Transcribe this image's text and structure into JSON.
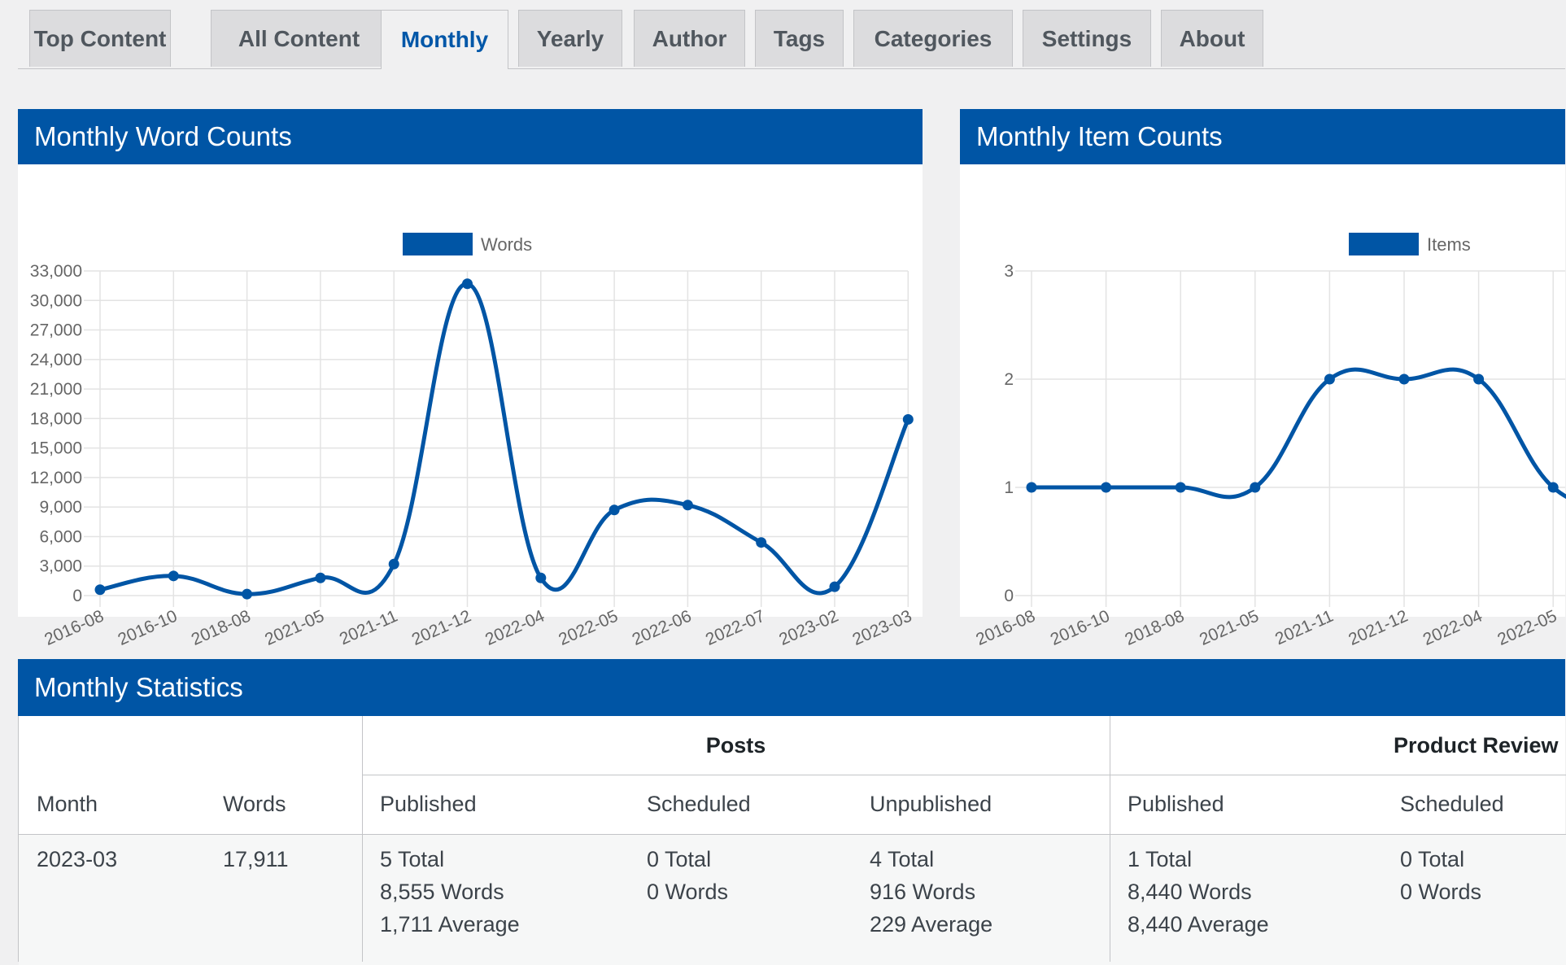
{
  "tabs": [
    {
      "label": "Top Content"
    },
    {
      "label": "All Content"
    },
    {
      "label": "Monthly"
    },
    {
      "label": "Yearly"
    },
    {
      "label": "Author"
    },
    {
      "label": "Tags"
    },
    {
      "label": "Categories"
    },
    {
      "label": "Settings"
    },
    {
      "label": "About"
    }
  ],
  "active_tab": "Monthly",
  "colors": {
    "accent": "#0055a5",
    "line": "#0055a5"
  },
  "word_chart": {
    "title": "Monthly Word Counts"
  },
  "item_chart": {
    "title": "Monthly Item Counts"
  },
  "chart_data": [
    {
      "type": "line",
      "title": "Monthly Word Counts",
      "legend": "Words",
      "legend_position": "top",
      "x": [
        "2016-08",
        "2016-10",
        "2018-08",
        "2021-05",
        "2021-11",
        "2021-12",
        "2022-04",
        "2022-05",
        "2022-06",
        "2022-07",
        "2023-02",
        "2023-03"
      ],
      "series": [
        {
          "name": "Words",
          "values": [
            600,
            2000,
            150,
            1800,
            3200,
            31700,
            1800,
            8700,
            9200,
            5400,
            900,
            17911
          ]
        }
      ],
      "y_ticks": [
        "0",
        "3,000",
        "6,000",
        "9,000",
        "12,000",
        "15,000",
        "18,000",
        "21,000",
        "24,000",
        "27,000",
        "30,000",
        "33,000"
      ],
      "ylim": [
        0,
        33000
      ],
      "grid": true
    },
    {
      "type": "line",
      "title": "Monthly Item Counts",
      "legend": "Items",
      "legend_position": "top",
      "x": [
        "2016-08",
        "2016-10",
        "2018-08",
        "2021-05",
        "2021-11",
        "2021-12",
        "2022-04",
        "2022-05"
      ],
      "series": [
        {
          "name": "Items",
          "values": [
            1,
            1,
            1,
            1,
            2,
            2,
            2,
            1
          ]
        }
      ],
      "y_ticks": [
        "0",
        "1",
        "2",
        "3"
      ],
      "ylim": [
        0,
        3
      ],
      "grid": true
    }
  ],
  "stats": {
    "title": "Monthly Statistics",
    "groups": {
      "posts": "Posts",
      "reviews": "Product Review"
    },
    "columns": {
      "month": "Month",
      "words": "Words",
      "posts_published": "Published",
      "posts_scheduled": "Scheduled",
      "posts_unpublished": "Unpublished",
      "reviews_published": "Published",
      "reviews_scheduled": "Scheduled"
    },
    "row": {
      "month": "2023-03",
      "words": "17,911",
      "posts_published": [
        "5 Total",
        "8,555 Words",
        "1,711 Average"
      ],
      "posts_scheduled": [
        "0 Total",
        "0 Words"
      ],
      "posts_unpublished": [
        "4 Total",
        "916 Words",
        "229 Average"
      ],
      "reviews_published": [
        "1 Total",
        "8,440 Words",
        "8,440 Average"
      ],
      "reviews_scheduled": [
        "0 Total",
        "0 Words"
      ]
    }
  }
}
